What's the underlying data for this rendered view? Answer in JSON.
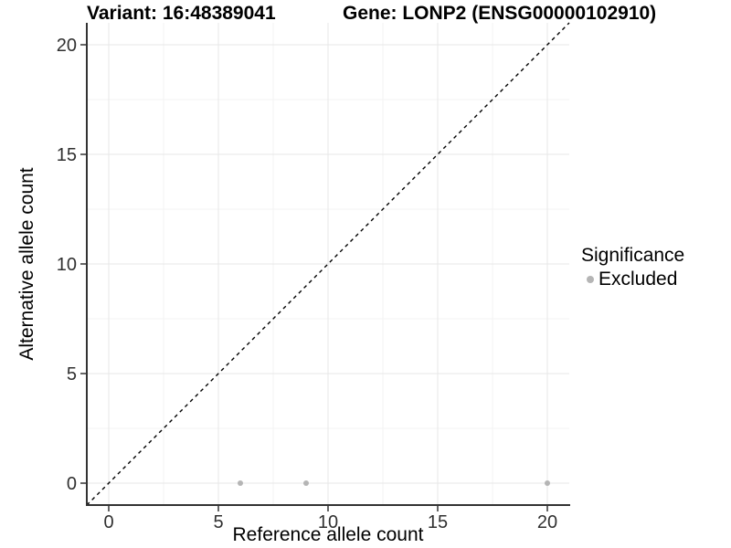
{
  "titles": {
    "variant": "Variant: 16:48389041",
    "gene": "Gene: LONP2 (ENSG00000102910)"
  },
  "legend": {
    "title": "Significance",
    "items": [
      {
        "label": "Excluded",
        "color": "#b5b5b5"
      }
    ]
  },
  "chart_data": {
    "type": "scatter",
    "title": "Variant: 16:48389041 | Gene: LONP2 (ENSG00000102910)",
    "xlabel": "Reference allele count",
    "ylabel": "Alternative allele count",
    "xlim": [
      -1,
      21
    ],
    "ylim": [
      -1,
      21
    ],
    "x_ticks": [
      0,
      5,
      10,
      15,
      20
    ],
    "y_ticks": [
      0,
      5,
      10,
      15,
      20
    ],
    "x_minor_ticks": [
      2.5,
      7.5,
      12.5,
      17.5
    ],
    "y_minor_ticks": [
      2.5,
      7.5,
      12.5,
      17.5
    ],
    "grid": true,
    "legend_position": "right",
    "series": [
      {
        "name": "Excluded",
        "color": "#b5b5b5",
        "points": [
          [
            6,
            0
          ],
          [
            9,
            0
          ],
          [
            20,
            0
          ]
        ]
      }
    ],
    "reference_line": {
      "name": "identity",
      "style": "dashed",
      "color": "#000000",
      "from": [
        -1,
        -1
      ],
      "to": [
        21,
        21
      ]
    },
    "colors": {
      "grid_major": "#e7e7e7",
      "grid_minor": "#f3f3f3",
      "axis_line": "#333333",
      "tick_mark": "#333333",
      "tick_label": "#303030",
      "panel_background": "#ffffff"
    }
  }
}
